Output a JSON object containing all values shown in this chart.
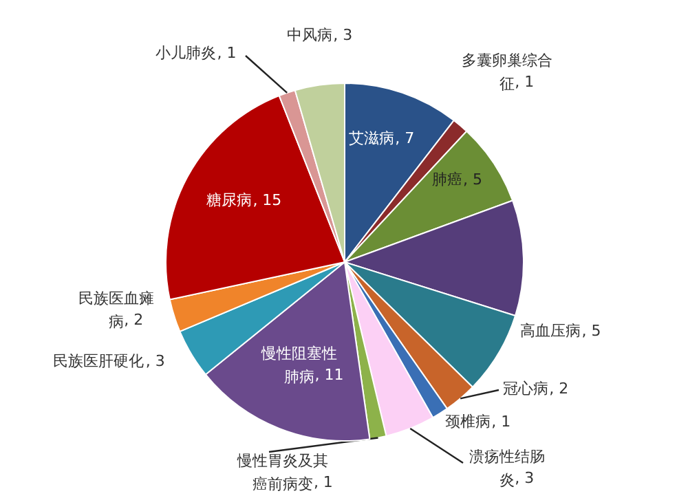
{
  "chart_data": {
    "type": "pie",
    "categories": [
      "艾滋病",
      "多囊卵巢综合征",
      "肺癌",
      null,
      "高血压病",
      "冠心病",
      "颈椎病",
      "溃疡性结肠炎",
      "慢性胃炎及其癌前病变",
      "慢性阻塞性肺病",
      "民族医肝硬化",
      "民族医血瘫病",
      "糖尿病",
      "小儿肺炎",
      "中风病"
    ],
    "values": [
      7,
      1,
      5,
      7,
      5,
      2,
      1,
      3,
      1,
      11,
      3,
      2,
      15,
      1,
      3
    ],
    "colors": [
      "#2a5289",
      "#8b2b2b",
      "#6b8e35",
      "#553d7a",
      "#2a7b8c",
      "#c8642a",
      "#3a6fb5",
      "#fcd0f5",
      "#8db24a",
      "#6a4a8c",
      "#2e9ab5",
      "#f0842a",
      "#b50000",
      "#d99694",
      "#c0d09c"
    ],
    "value_labels": [
      ", 7",
      ", 1",
      ", 5",
      null,
      ", 5",
      ", 2",
      ", 1",
      ", 3",
      ", 1",
      ", 11",
      ", 3",
      ", 2",
      ", 15",
      ", 1",
      ", 3"
    ]
  }
}
